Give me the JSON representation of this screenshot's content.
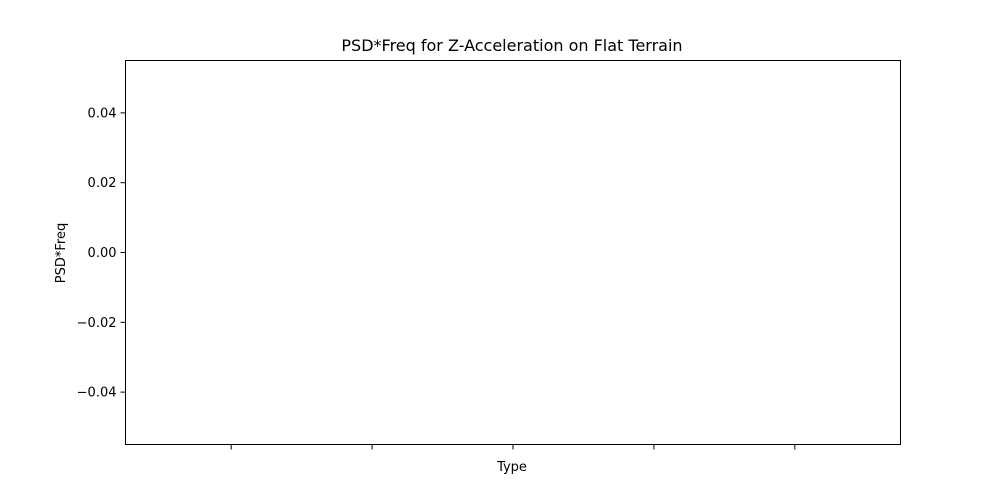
{
  "chart_data": {
    "type": "bar",
    "title": "PSD*Freq for Z-Acceleration on Flat Terrain",
    "xlabel": "Type",
    "ylabel": "PSD*Freq",
    "categories": [
      "",
      "",
      "",
      "",
      ""
    ],
    "series": [],
    "ylim": [
      -0.055,
      0.055
    ],
    "yticks": [
      -0.04,
      -0.02,
      0.0,
      0.02,
      0.04
    ],
    "ytick_labels": [
      "−0.04",
      "−0.02",
      "0.00",
      "0.02",
      "0.04"
    ],
    "grid": false,
    "legend": "none"
  }
}
